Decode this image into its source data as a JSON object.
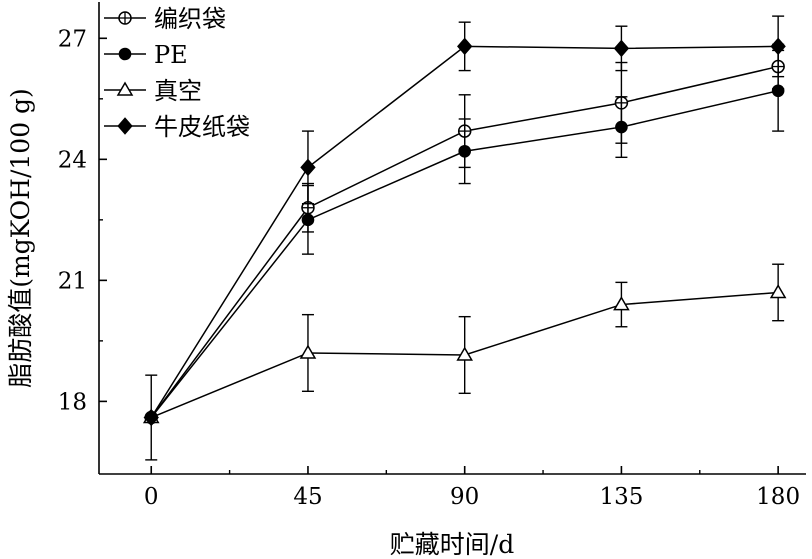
{
  "chart_data": {
    "type": "line",
    "title": "",
    "xlabel": "贮藏时间/d",
    "ylabel": "脂肪酸值(mgKOH/100 g)",
    "x": [
      0,
      45,
      90,
      135,
      180
    ],
    "xticks": [
      "0",
      "45",
      "90",
      "135",
      "180"
    ],
    "yticks": [
      "18",
      "21",
      "24",
      "27"
    ],
    "xlim": [
      -15,
      188
    ],
    "ylim": [
      16.2,
      27.9
    ],
    "legend_position": "top-left",
    "grid": false,
    "series": [
      {
        "name": "编织袋",
        "marker": "circle-plus",
        "values": [
          17.6,
          22.8,
          24.7,
          25.4,
          26.3
        ],
        "errors": [
          0.0,
          0.6,
          0.9,
          1.0,
          0.55
        ]
      },
      {
        "name": "PE",
        "marker": "filled-circle",
        "values": [
          17.6,
          22.5,
          24.2,
          24.8,
          25.7
        ],
        "errors": [
          1.05,
          0.85,
          0.8,
          0.75,
          1.0
        ]
      },
      {
        "name": "真空",
        "marker": "open-triangle",
        "values": [
          17.6,
          19.2,
          19.15,
          20.4,
          20.7
        ],
        "errors": [
          0.0,
          0.95,
          0.95,
          0.55,
          0.7
        ]
      },
      {
        "name": "牛皮纸袋",
        "marker": "filled-diamond",
        "values": [
          17.6,
          23.8,
          26.8,
          26.75,
          26.8
        ],
        "errors": [
          0.0,
          0.9,
          0.6,
          0.55,
          0.75
        ]
      }
    ]
  }
}
